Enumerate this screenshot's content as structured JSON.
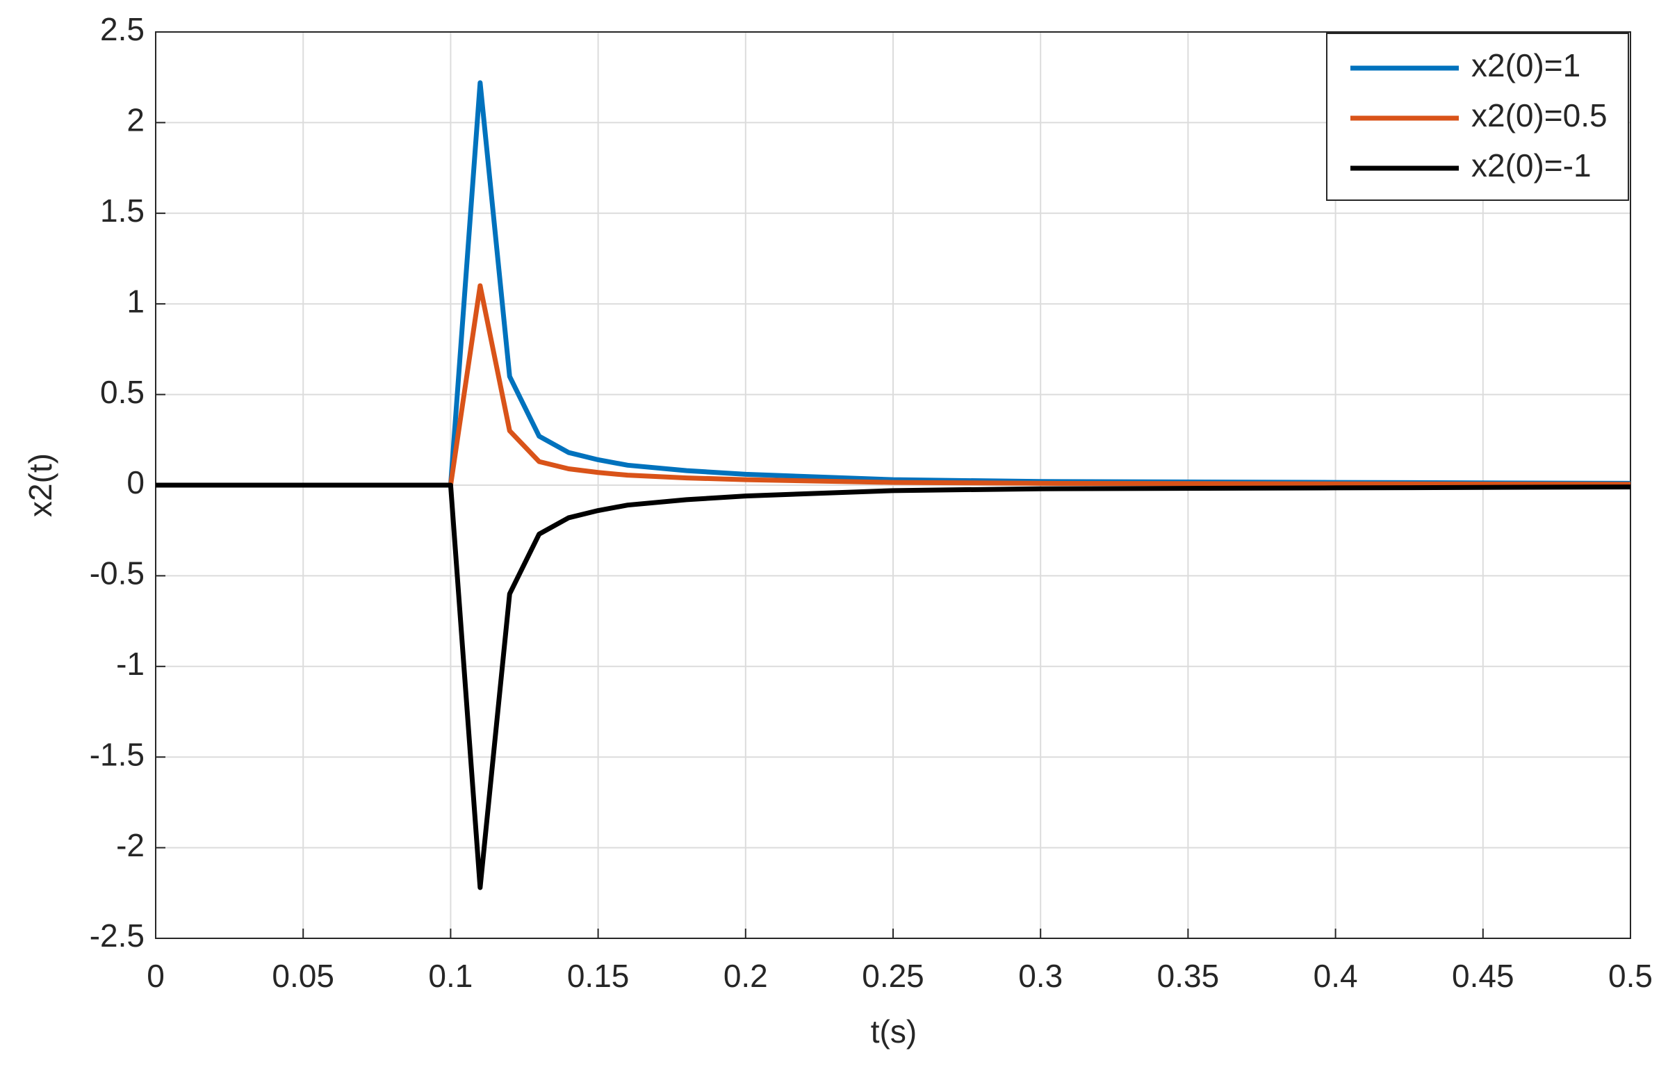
{
  "chart_data": {
    "type": "line",
    "x_label": "t(s)",
    "y_label": "x2(t)",
    "x": [
      0,
      0.1,
      0.11,
      0.12,
      0.13,
      0.14,
      0.15,
      0.16,
      0.18,
      0.2,
      0.25,
      0.3,
      0.4,
      0.5
    ],
    "series": [
      {
        "name": "x2(0)=1",
        "color": "#0072bd",
        "values": [
          0,
          0,
          2.22,
          0.6,
          0.27,
          0.18,
          0.14,
          0.11,
          0.08,
          0.06,
          0.03,
          0.02,
          0.015,
          0.01
        ]
      },
      {
        "name": "x2(0)=0.5",
        "color": "#d95319",
        "values": [
          0,
          0,
          1.1,
          0.3,
          0.13,
          0.09,
          0.07,
          0.055,
          0.04,
          0.03,
          0.015,
          0.01,
          0.007,
          0.005
        ]
      },
      {
        "name": "x2(0)=-1",
        "color": "#000000",
        "values": [
          0,
          0,
          -2.22,
          -0.6,
          -0.27,
          -0.18,
          -0.14,
          -0.11,
          -0.08,
          -0.06,
          -0.03,
          -0.02,
          -0.015,
          -0.01
        ]
      }
    ],
    "xlim": [
      0,
      0.5
    ],
    "xticks": [
      0,
      0.05,
      0.1,
      0.15,
      0.2,
      0.25,
      0.3,
      0.35,
      0.4,
      0.45,
      0.5
    ],
    "ylim": [
      -2.5,
      2.5
    ],
    "yticks": [
      -2.5,
      -2,
      -1.5,
      -1,
      -0.5,
      0,
      0.5,
      1,
      1.5,
      2,
      2.5
    ],
    "grid": true,
    "legend": "top-right"
  }
}
